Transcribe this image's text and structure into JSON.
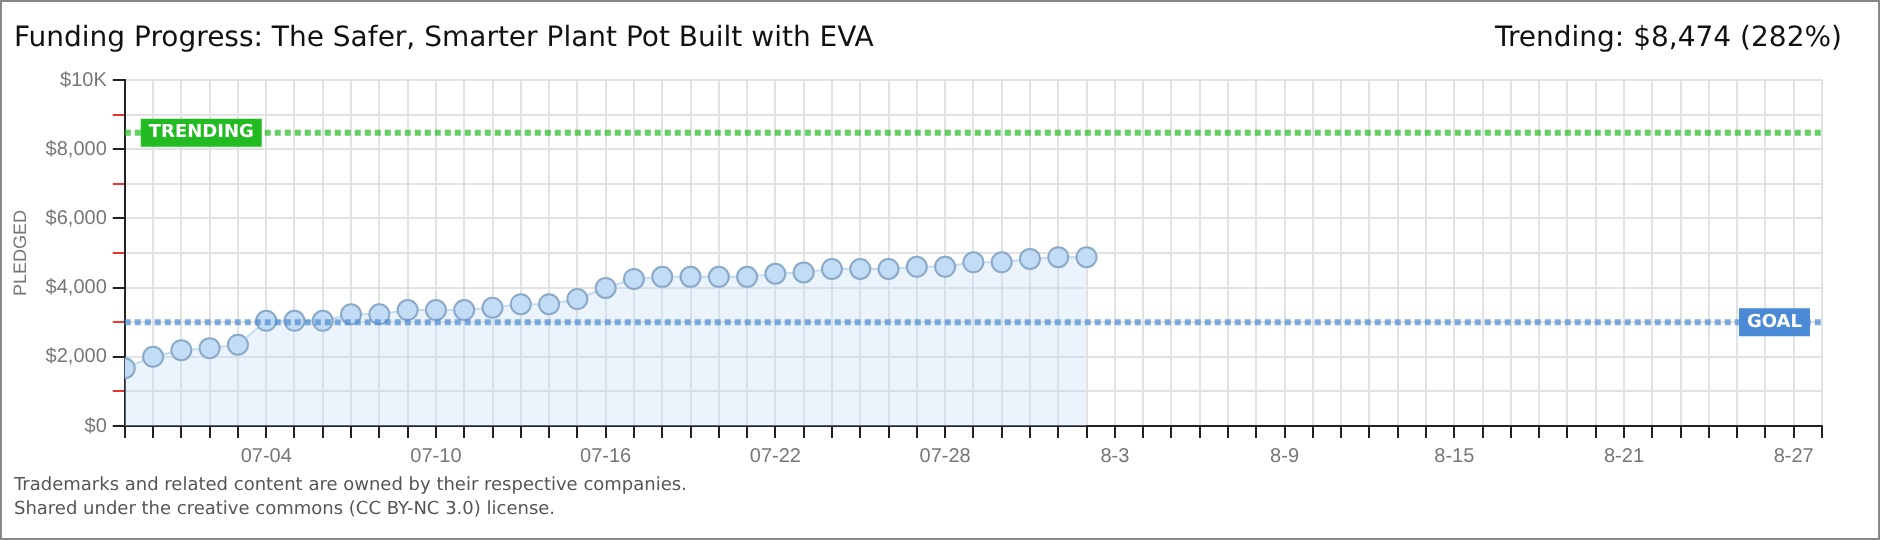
{
  "chart_data": {
    "type": "area",
    "title": "Funding Progress: The Safer, Smarter Plant Pot Built with EVA",
    "subtitle": "Trending: $8,474 (282%)",
    "ylabel": "PLEDGED",
    "x": [
      "--06-29",
      "--06-30",
      "--07-01",
      "--07-02",
      "--07-03",
      "--07-04",
      "--07-05",
      "--07-06",
      "--07-07",
      "--07-08",
      "--07-09",
      "--07-10",
      "--07-11",
      "--07-12",
      "--07-13",
      "--07-14",
      "--07-15",
      "--07-16",
      "--07-17",
      "--07-18",
      "--07-19",
      "--07-20",
      "--07-21",
      "--07-22",
      "--07-23",
      "--07-24",
      "--07-25",
      "--07-26",
      "--07-27",
      "--07-28",
      "--07-29",
      "--07-30",
      "--07-31",
      "--08-01",
      "--08-02"
    ],
    "series": [
      {
        "color": "#c3dcf5",
        "values": [
          1670,
          2000,
          2190,
          2250,
          2350,
          3040,
          3040,
          3040,
          3230,
          3230,
          3350,
          3350,
          3350,
          3420,
          3520,
          3520,
          3670,
          3990,
          4250,
          4310,
          4310,
          4310,
          4310,
          4400,
          4440,
          4540,
          4540,
          4540,
          4600,
          4600,
          4730,
          4730,
          4830,
          4880,
          4880
        ]
      }
    ],
    "marker": "circle",
    "grid": true,
    "xlim": [
      "--06-29",
      "--08-28"
    ],
    "xticks": [
      {
        "value": "--06-29",
        "label": null
      },
      {
        "value": "--06-30",
        "label": null
      },
      {
        "value": "--07-01",
        "label": null
      },
      {
        "value": "--07-02",
        "label": null
      },
      {
        "value": "--07-03",
        "label": null
      },
      {
        "value": "--07-04",
        "label": "07-04"
      },
      {
        "value": "--07-05",
        "label": null
      },
      {
        "value": "--07-06",
        "label": null
      },
      {
        "value": "--07-07",
        "label": null
      },
      {
        "value": "--07-08",
        "label": null
      },
      {
        "value": "--07-09",
        "label": null
      },
      {
        "value": "--07-10",
        "label": "07-10"
      },
      {
        "value": "--07-11",
        "label": null
      },
      {
        "value": "--07-12",
        "label": null
      },
      {
        "value": "--07-13",
        "label": null
      },
      {
        "value": "--07-14",
        "label": null
      },
      {
        "value": "--07-15",
        "label": null
      },
      {
        "value": "--07-16",
        "label": "07-16"
      },
      {
        "value": "--07-17",
        "label": null
      },
      {
        "value": "--07-18",
        "label": null
      },
      {
        "value": "--07-19",
        "label": null
      },
      {
        "value": "--07-20",
        "label": null
      },
      {
        "value": "--07-21",
        "label": null
      },
      {
        "value": "--07-22",
        "label": "07-22"
      },
      {
        "value": "--07-23",
        "label": null
      },
      {
        "value": "--07-24",
        "label": null
      },
      {
        "value": "--07-25",
        "label": null
      },
      {
        "value": "--07-26",
        "label": null
      },
      {
        "value": "--07-27",
        "label": null
      },
      {
        "value": "--07-28",
        "label": "07-28"
      },
      {
        "value": "--07-29",
        "label": null
      },
      {
        "value": "--07-30",
        "label": null
      },
      {
        "value": "--07-31",
        "label": null
      },
      {
        "value": "--08-01",
        "label": null
      },
      {
        "value": "--08-02",
        "label": null
      },
      {
        "value": "--08-03",
        "label": "8-3"
      },
      {
        "value": "--08-04",
        "label": null
      },
      {
        "value": "--08-05",
        "label": null
      },
      {
        "value": "--08-06",
        "label": null
      },
      {
        "value": "--08-07",
        "label": null
      },
      {
        "value": "--08-08",
        "label": null
      },
      {
        "value": "--08-09",
        "label": "8-9"
      },
      {
        "value": "--08-10",
        "label": null
      },
      {
        "value": "--08-11",
        "label": null
      },
      {
        "value": "--08-12",
        "label": null
      },
      {
        "value": "--08-13",
        "label": null
      },
      {
        "value": "--08-14",
        "label": null
      },
      {
        "value": "--08-15",
        "label": "8-15"
      },
      {
        "value": "--08-16",
        "label": null
      },
      {
        "value": "--08-17",
        "label": null
      },
      {
        "value": "--08-18",
        "label": null
      },
      {
        "value": "--08-19",
        "label": null
      },
      {
        "value": "--08-20",
        "label": null
      },
      {
        "value": "--08-21",
        "label": "8-21"
      },
      {
        "value": "--08-22",
        "label": null
      },
      {
        "value": "--08-23",
        "label": null
      },
      {
        "value": "--08-24",
        "label": null
      },
      {
        "value": "--08-25",
        "label": null
      },
      {
        "value": "--08-26",
        "label": null
      },
      {
        "value": "--08-27",
        "label": "8-27"
      },
      {
        "value": "--08-28",
        "label": null
      }
    ],
    "ylim": [
      0,
      10000
    ],
    "yticks": [
      {
        "value": 0,
        "label": "$0"
      },
      {
        "value": 1000,
        "label": null
      },
      {
        "value": 2000,
        "label": "$2,000"
      },
      {
        "value": 3000,
        "label": null
      },
      {
        "value": 4000,
        "label": "$4,000"
      },
      {
        "value": 5000,
        "label": null
      },
      {
        "value": 6000,
        "label": "$6,000"
      },
      {
        "value": 7000,
        "label": null
      },
      {
        "value": 8000,
        "label": "$8,000"
      },
      {
        "value": 9000,
        "label": null
      },
      {
        "value": 10000,
        "label": "$10K"
      }
    ],
    "ref_lines": [
      {
        "axis": "y",
        "value": 8474,
        "label": "TRENDING",
        "color": "#22bb22",
        "line_style": "dotted"
      },
      {
        "axis": "y",
        "value": 3000,
        "label": "GOAL",
        "color": "#4a8ad4",
        "line_style": "dotted"
      }
    ],
    "annotations": [
      "Trademarks and related content are owned by their respective companies.",
      "Shared under the creative commons (CC BY-NC 3.0) license."
    ]
  }
}
